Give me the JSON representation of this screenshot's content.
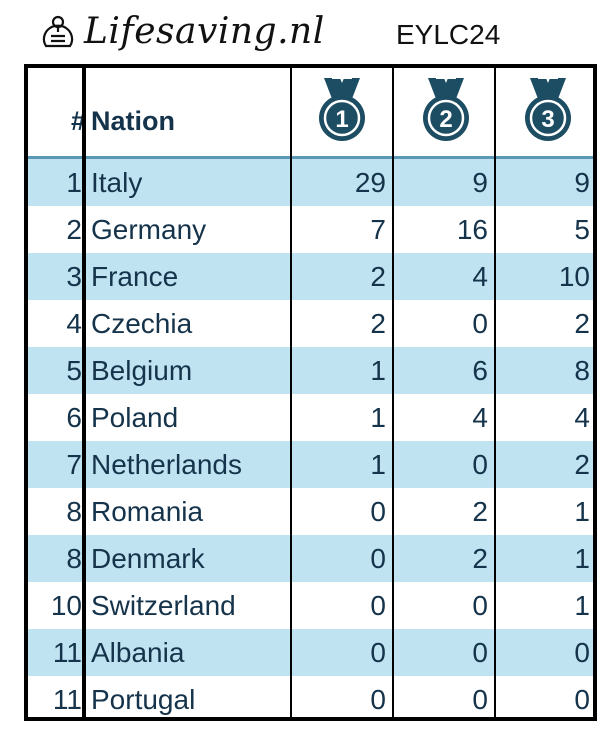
{
  "header": {
    "logo_text": "Lifesaving.nl",
    "event": "EYLC24"
  },
  "table": {
    "columns": {
      "rank": "#",
      "nation": "Nation",
      "gold": "1",
      "silver": "2",
      "bronze": "3"
    },
    "rows": [
      {
        "rank": "1",
        "nation": "Italy",
        "gold": "29",
        "silver": "9",
        "bronze": "9"
      },
      {
        "rank": "2",
        "nation": "Germany",
        "gold": "7",
        "silver": "16",
        "bronze": "5"
      },
      {
        "rank": "3",
        "nation": "France",
        "gold": "2",
        "silver": "4",
        "bronze": "10"
      },
      {
        "rank": "4",
        "nation": "Czechia",
        "gold": "2",
        "silver": "0",
        "bronze": "2"
      },
      {
        "rank": "5",
        "nation": "Belgium",
        "gold": "1",
        "silver": "6",
        "bronze": "8"
      },
      {
        "rank": "6",
        "nation": "Poland",
        "gold": "1",
        "silver": "4",
        "bronze": "4"
      },
      {
        "rank": "7",
        "nation": "Netherlands",
        "gold": "1",
        "silver": "0",
        "bronze": "2"
      },
      {
        "rank": "8",
        "nation": "Romania",
        "gold": "0",
        "silver": "2",
        "bronze": "1"
      },
      {
        "rank": "8",
        "nation": "Denmark",
        "gold": "0",
        "silver": "2",
        "bronze": "1"
      },
      {
        "rank": "10",
        "nation": "Switzerland",
        "gold": "0",
        "silver": "0",
        "bronze": "1"
      },
      {
        "rank": "11",
        "nation": "Albania",
        "gold": "0",
        "silver": "0",
        "bronze": "0"
      },
      {
        "rank": "11",
        "nation": "Portugal",
        "gold": "0",
        "silver": "0",
        "bronze": "0"
      }
    ]
  },
  "colors": {
    "text": "#15334a",
    "alt_row": "#bfe3f1",
    "medal": "#1d4d63",
    "border": "#000000"
  },
  "icons": [
    "lifesaver-logo-icon",
    "medal-icon"
  ]
}
